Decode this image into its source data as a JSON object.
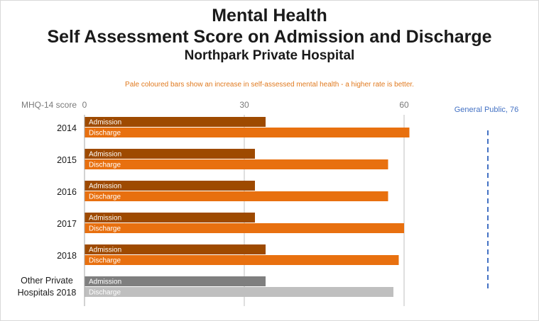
{
  "chart_data": {
    "type": "bar",
    "orientation": "horizontal",
    "title": "Mental Health",
    "subtitle": "Self Assessment Score on Admission and Discharge",
    "subtitle2": "Northpark  Private Hospital",
    "note": "Pale coloured bars show an increase in self-assessed mental health - a higher rate is better.",
    "axis_title": "MHQ-14 score",
    "xlim": [
      0,
      76
    ],
    "ticks": [
      0,
      30,
      60
    ],
    "grid": true,
    "categories": [
      "2014",
      "2015",
      "2016",
      "2017",
      "2018",
      "Other Private Hospitals 2018"
    ],
    "series": [
      {
        "name": "Admission",
        "values": [
          34,
          32,
          32,
          32,
          34,
          34
        ],
        "colors": [
          "#9e4a00",
          "#9e4a00",
          "#9e4a00",
          "#9e4a00",
          "#9e4a00",
          "#7f7f7f"
        ]
      },
      {
        "name": "Discharge",
        "values": [
          61,
          57,
          57,
          60,
          59,
          58
        ],
        "colors": [
          "#e8700f",
          "#e8700f",
          "#e8700f",
          "#e8700f",
          "#e8700f",
          "#bfbfbf"
        ]
      }
    ],
    "reference_line": {
      "label": "General Public, 76",
      "value": 76,
      "color": "#4472c4",
      "style": "dashed"
    }
  }
}
